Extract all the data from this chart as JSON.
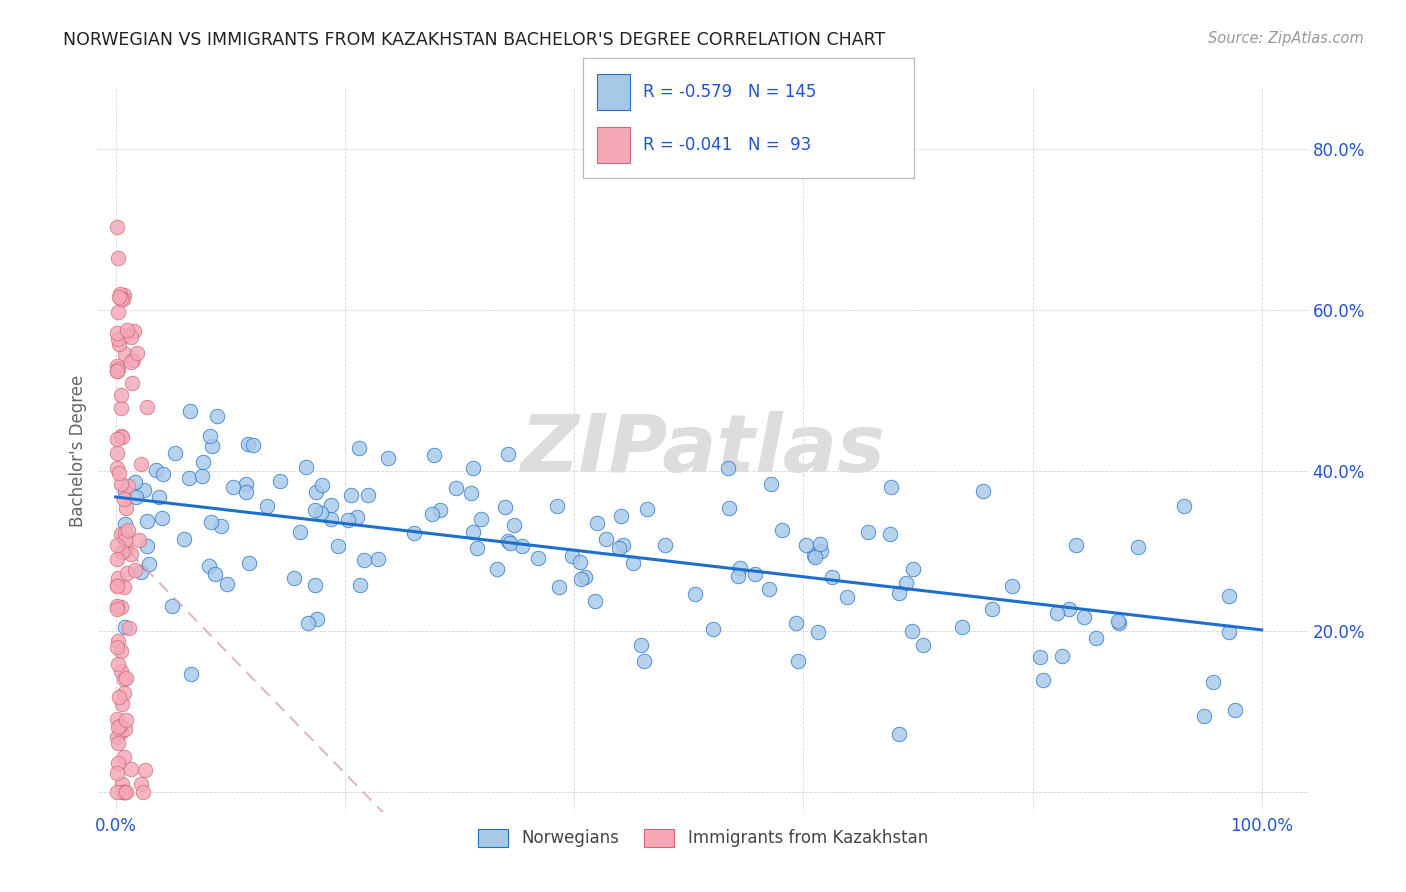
{
  "title": "NORWEGIAN VS IMMIGRANTS FROM KAZAKHSTAN BACHELOR'S DEGREE CORRELATION CHART",
  "source": "Source: ZipAtlas.com",
  "ylabel": "Bachelor's Degree",
  "watermark": "ZIPatlas",
  "legend_blue_r": "R = -0.579",
  "legend_blue_n": "N = 145",
  "legend_pink_r": "R = -0.041",
  "legend_pink_n": "N =  93",
  "legend_label_blue": "Norwegians",
  "legend_label_pink": "Immigrants from Kazakhstan",
  "color_blue": "#a8c8e8",
  "color_pink": "#f4a8b8",
  "line_blue": "#1e6fcc",
  "line_pink_reg": "#d4a0b0",
  "edge_blue": "#1e6fcc",
  "edge_pink": "#d06878",
  "title_color": "#222222",
  "source_color": "#999999",
  "tick_color": "#2255cc",
  "ylabel_color": "#666666",
  "grid_color": "#cccccc",
  "watermark_color": "#dddddd"
}
